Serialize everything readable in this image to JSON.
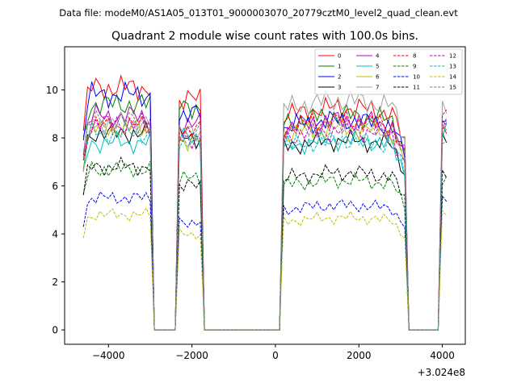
{
  "chart_data": {
    "type": "line",
    "suptitle": "Data file: modeM0/AS1A05_013T01_9000003070_20779cztM0_level2_quad_clean.evt",
    "title": "Quadrant 2 module wise count rates with 100.0s bins.",
    "xlabel": "",
    "ylabel": "",
    "offset_label": "+3.024e8",
    "xlim": [
      -5050,
      4550
    ],
    "ylim": [
      -0.6,
      11.8
    ],
    "x_ticks": [
      -4000,
      -2000,
      0,
      2000,
      4000
    ],
    "x_tick_labels": [
      "−4000",
      "−2000",
      "0",
      "2000",
      "4000"
    ],
    "y_ticks": [
      0,
      2,
      4,
      6,
      8,
      10
    ],
    "y_tick_labels": [
      "0",
      "2",
      "4",
      "6",
      "8",
      "10"
    ],
    "legend_position": "top-right",
    "series": [
      {
        "name": "0",
        "color": "#ff0000",
        "dash": "solid",
        "levels": [
          10.1,
          9.6,
          8.9,
          8.6
        ]
      },
      {
        "name": "1",
        "color": "#008000",
        "dash": "solid",
        "levels": [
          9.4,
          9.3,
          8.6,
          8.3
        ]
      },
      {
        "name": "2",
        "color": "#0000ff",
        "dash": "solid",
        "levels": [
          9.8,
          9.0,
          8.4,
          8.6
        ]
      },
      {
        "name": "3",
        "color": "#000000",
        "dash": "solid",
        "levels": [
          8.2,
          8.0,
          7.6,
          8.0
        ]
      },
      {
        "name": "4",
        "color": "#bf00bf",
        "dash": "solid",
        "levels": [
          8.9,
          8.6,
          8.4,
          8.7
        ]
      },
      {
        "name": "5",
        "color": "#00bfbf",
        "dash": "solid",
        "levels": [
          7.8,
          8.0,
          7.6,
          8.4
        ]
      },
      {
        "name": "6",
        "color": "#bfbf00",
        "dash": "solid",
        "levels": [
          8.4,
          7.9,
          8.1,
          8.2
        ]
      },
      {
        "name": "7",
        "color": "#a0a0a0",
        "dash": "solid",
        "levels": [
          8.6,
          8.2,
          9.2,
          9.5
        ]
      },
      {
        "name": "8",
        "color": "#ff0000",
        "dash": "dashed",
        "levels": [
          8.5,
          8.4,
          8.4,
          9.0
        ]
      },
      {
        "name": "9",
        "color": "#008000",
        "dash": "dashed",
        "levels": [
          6.7,
          6.3,
          6.0,
          6.3
        ]
      },
      {
        "name": "10",
        "color": "#0000ff",
        "dash": "dashed",
        "levels": [
          5.5,
          4.5,
          5.0,
          5.3
        ]
      },
      {
        "name": "11",
        "color": "#000000",
        "dash": "dashed",
        "levels": [
          6.8,
          6.0,
          6.3,
          6.7
        ]
      },
      {
        "name": "12",
        "color": "#bf00bf",
        "dash": "dashed",
        "levels": [
          8.6,
          8.0,
          8.0,
          8.5
        ]
      },
      {
        "name": "13",
        "color": "#00bfbf",
        "dash": "dashed",
        "levels": [
          8.2,
          7.8,
          7.6,
          7.8
        ]
      },
      {
        "name": "14",
        "color": "#bfbf00",
        "dash": "dashed",
        "levels": [
          4.8,
          4.0,
          4.5,
          4.8
        ]
      },
      {
        "name": "15",
        "color": "#808080",
        "dash": "dashed",
        "levels": [
          8.7,
          8.2,
          8.2,
          8.6
        ]
      }
    ],
    "segments": [
      {
        "start": -4600,
        "end": -3000
      },
      {
        "start": -2300,
        "end": -1800
      },
      {
        "start": 150,
        "end": 3100
      },
      {
        "start": 4000,
        "end": 4100
      }
    ],
    "gaps": [
      {
        "start": -2900,
        "end": -2400
      },
      {
        "start": -1700,
        "end": 50
      },
      {
        "start": 3200,
        "end": 3900
      }
    ],
    "bin_width": 100
  }
}
